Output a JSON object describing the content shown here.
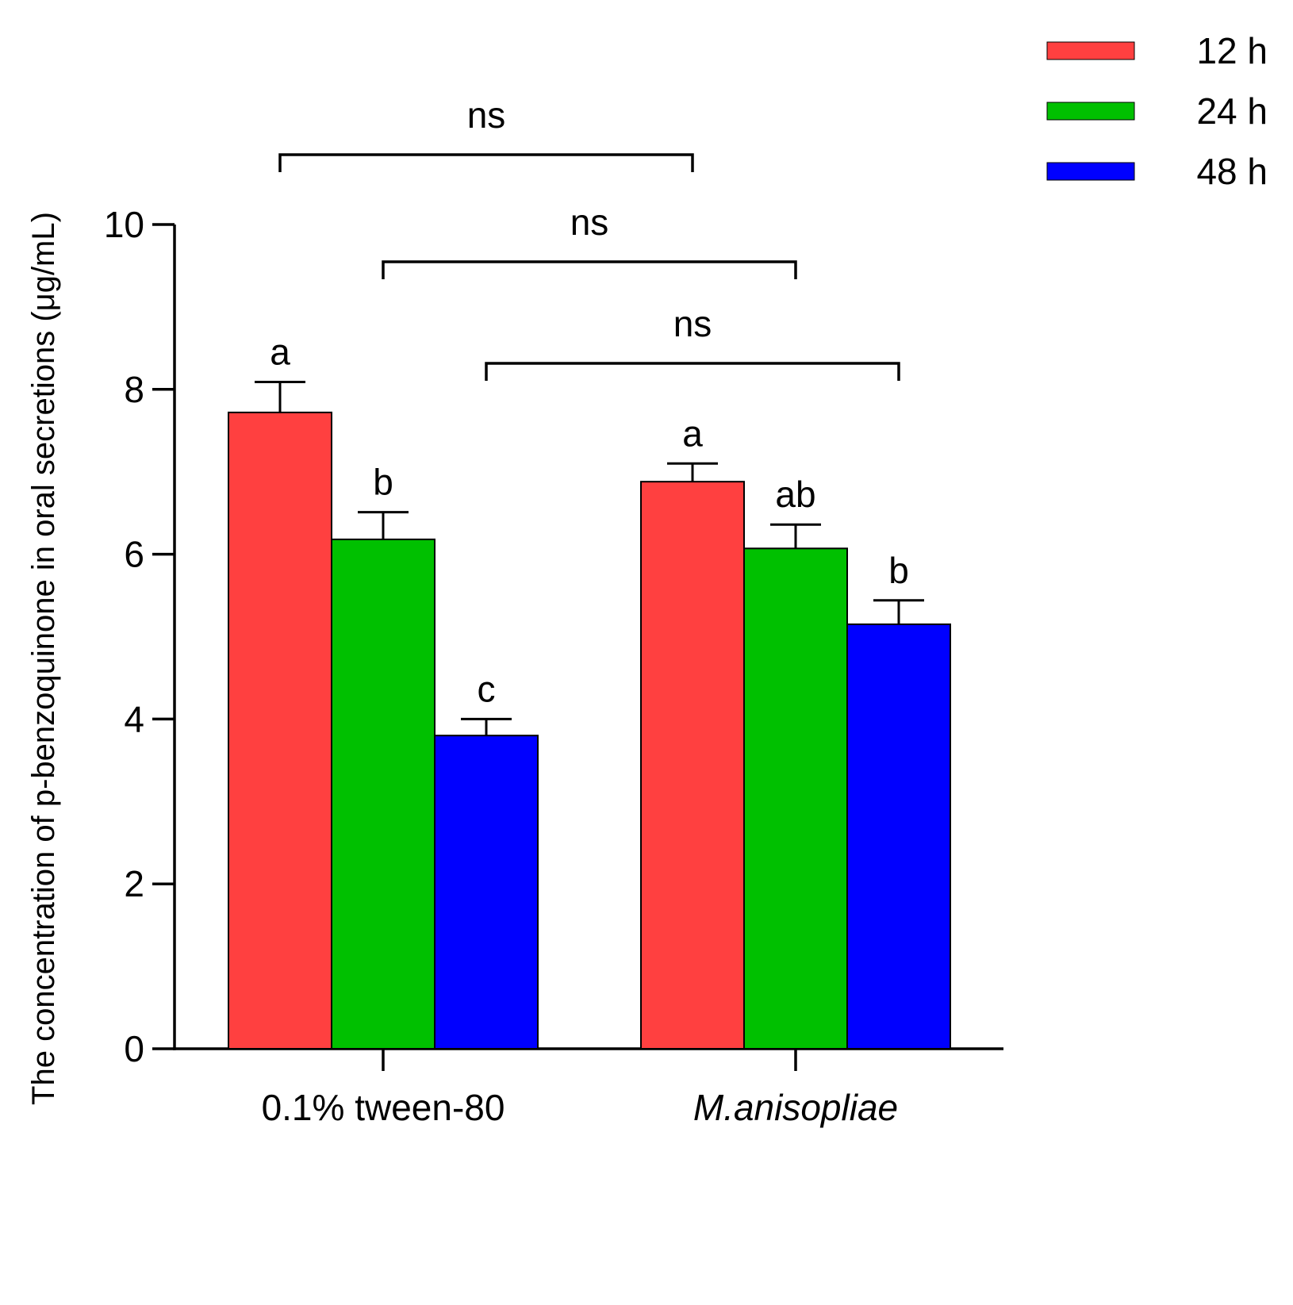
{
  "chart_data": {
    "type": "bar",
    "ylabel": "The concentration of p-benzoquinone in oral secretions (μg/mL)",
    "ylim": [
      0,
      10
    ],
    "yticks": [
      0,
      2,
      4,
      6,
      8,
      10
    ],
    "categories": [
      "0.1% tween-80",
      "M.anisopliae"
    ],
    "categories_italic": [
      false,
      true
    ],
    "series": [
      {
        "name": "12 h",
        "color": "#ff4040",
        "values": [
          7.72,
          6.88
        ],
        "errors": [
          0.37,
          0.22
        ],
        "letters": [
          "a",
          "a"
        ]
      },
      {
        "name": "24 h",
        "color": "#00c000",
        "values": [
          6.18,
          6.07
        ],
        "errors": [
          0.33,
          0.29
        ],
        "letters": [
          "b",
          "ab"
        ]
      },
      {
        "name": "48 h",
        "color": "#0000ff",
        "values": [
          3.8,
          5.15
        ],
        "errors": [
          0.2,
          0.29
        ],
        "letters": [
          "c",
          "b"
        ]
      }
    ],
    "comparisons": [
      {
        "label": "ns",
        "from": [
          0,
          0
        ],
        "to": [
          1,
          0
        ]
      },
      {
        "label": "ns",
        "from": [
          0,
          1
        ],
        "to": [
          1,
          1
        ]
      },
      {
        "label": "ns",
        "from": [
          0,
          2
        ],
        "to": [
          1,
          2
        ]
      }
    ],
    "legend_position": "top-right",
    "grid": false
  }
}
